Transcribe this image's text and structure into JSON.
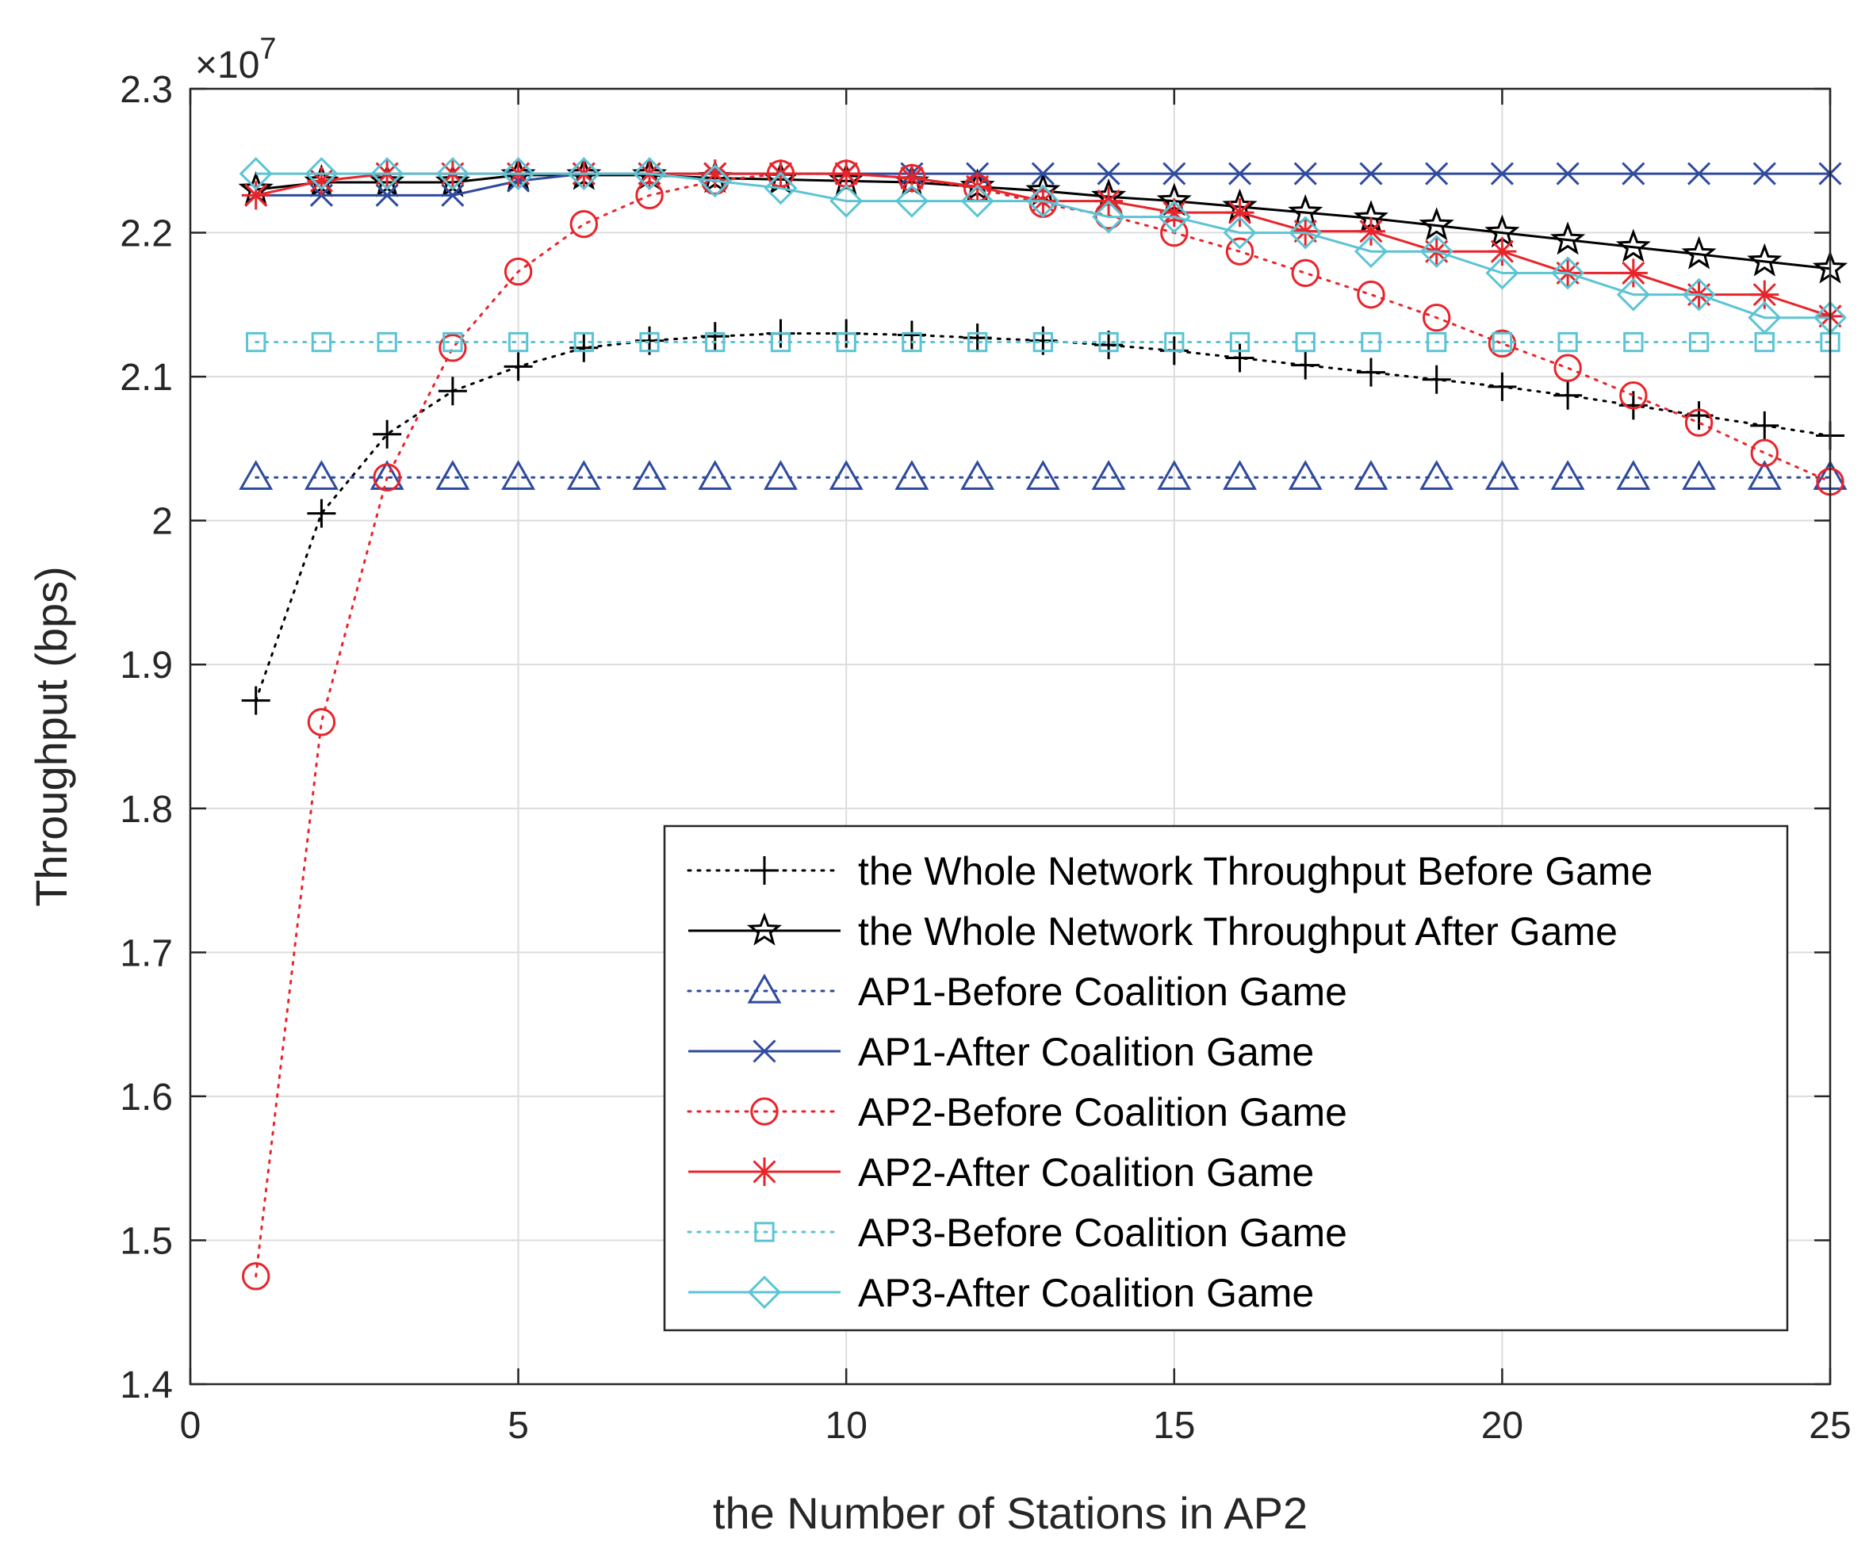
{
  "chart_data": {
    "type": "line",
    "xlabel": "the Number of Stations in AP2",
    "ylabel": "Throughput (bps)",
    "exponent_label": {
      "base": "×10",
      "power": "7"
    },
    "xlim": [
      0,
      25
    ],
    "ylim": [
      1.4,
      2.3
    ],
    "xticks": [
      0,
      5,
      10,
      15,
      20,
      25
    ],
    "yticks": [
      1.4,
      1.5,
      1.6,
      1.7,
      1.8,
      1.9,
      2.0,
      2.1,
      2.2,
      2.3
    ],
    "xtick_labels": [
      "0",
      "5",
      "10",
      "15",
      "20",
      "25"
    ],
    "ytick_labels": [
      "1.4",
      "1.5",
      "1.6",
      "1.7",
      "1.8",
      "1.9",
      "2",
      "2.1",
      "2.2",
      "2.3"
    ],
    "grid": true,
    "legend_position": "bottom-right",
    "x": [
      1,
      2,
      3,
      4,
      5,
      6,
      7,
      8,
      9,
      10,
      11,
      12,
      13,
      14,
      15,
      16,
      17,
      18,
      19,
      20,
      21,
      22,
      23,
      24,
      25
    ],
    "series": [
      {
        "name": "the Whole Network Throughput Before Game",
        "color": "#000000",
        "line": "dotted",
        "marker": "plus",
        "values": [
          1.875,
          2.005,
          2.06,
          2.09,
          2.107,
          2.12,
          2.125,
          2.128,
          2.13,
          2.13,
          2.129,
          2.127,
          2.125,
          2.122,
          2.118,
          2.113,
          2.108,
          2.103,
          2.098,
          2.093,
          2.087,
          2.08,
          2.073,
          2.066,
          2.059
        ]
      },
      {
        "name": "the Whole Network Throughput After Game",
        "color": "#000000",
        "line": "solid",
        "marker": "star",
        "values": [
          2.23,
          2.235,
          2.235,
          2.235,
          2.24,
          2.24,
          2.24,
          2.238,
          2.237,
          2.236,
          2.235,
          2.232,
          2.229,
          2.225,
          2.222,
          2.218,
          2.214,
          2.21,
          2.205,
          2.2,
          2.195,
          2.19,
          2.185,
          2.18,
          2.175
        ]
      },
      {
        "name": "AP1-Before Coalition Game",
        "color": "#2e4a9e",
        "line": "dotted",
        "marker": "triangle",
        "values": [
          2.03,
          2.03,
          2.03,
          2.03,
          2.03,
          2.03,
          2.03,
          2.03,
          2.03,
          2.03,
          2.03,
          2.03,
          2.03,
          2.03,
          2.03,
          2.03,
          2.03,
          2.03,
          2.03,
          2.03,
          2.03,
          2.03,
          2.03,
          2.03,
          2.03
        ]
      },
      {
        "name": "AP1-After Coalition Game",
        "color": "#2e4a9e",
        "line": "solid",
        "marker": "x",
        "values": [
          2.226,
          2.226,
          2.226,
          2.226,
          2.236,
          2.241,
          2.241,
          2.241,
          2.241,
          2.241,
          2.241,
          2.241,
          2.241,
          2.241,
          2.241,
          2.241,
          2.241,
          2.241,
          2.241,
          2.241,
          2.241,
          2.241,
          2.241,
          2.241,
          2.241
        ]
      },
      {
        "name": "AP2-Before Coalition Game",
        "color": "#e8242b",
        "line": "dotted",
        "marker": "circle",
        "values": [
          1.475,
          1.86,
          2.03,
          2.12,
          2.173,
          2.206,
          2.226,
          2.236,
          2.241,
          2.241,
          2.238,
          2.231,
          2.22,
          2.212,
          2.2,
          2.187,
          2.172,
          2.157,
          2.141,
          2.123,
          2.106,
          2.087,
          2.068,
          2.047,
          2.027
        ]
      },
      {
        "name": "AP2-After Coalition Game",
        "color": "#e8242b",
        "line": "solid",
        "marker": "asterisk",
        "values": [
          2.226,
          2.236,
          2.241,
          2.241,
          2.241,
          2.241,
          2.241,
          2.241,
          2.241,
          2.241,
          2.238,
          2.232,
          2.222,
          2.222,
          2.214,
          2.214,
          2.201,
          2.201,
          2.187,
          2.187,
          2.172,
          2.172,
          2.157,
          2.157,
          2.142
        ]
      },
      {
        "name": "AP3-Before Coalition Game",
        "color": "#5bc4d4",
        "line": "dotted",
        "marker": "square",
        "values": [
          2.124,
          2.124,
          2.124,
          2.124,
          2.124,
          2.124,
          2.124,
          2.124,
          2.124,
          2.124,
          2.124,
          2.124,
          2.124,
          2.124,
          2.124,
          2.124,
          2.124,
          2.124,
          2.124,
          2.124,
          2.124,
          2.124,
          2.124,
          2.124,
          2.124
        ]
      },
      {
        "name": "AP3-After Coalition Game",
        "color": "#5bc4d4",
        "line": "solid",
        "marker": "diamond",
        "values": [
          2.241,
          2.241,
          2.241,
          2.241,
          2.241,
          2.241,
          2.241,
          2.236,
          2.231,
          2.222,
          2.222,
          2.222,
          2.222,
          2.211,
          2.211,
          2.2,
          2.2,
          2.187,
          2.187,
          2.172,
          2.172,
          2.157,
          2.157,
          2.141,
          2.141
        ]
      }
    ]
  }
}
